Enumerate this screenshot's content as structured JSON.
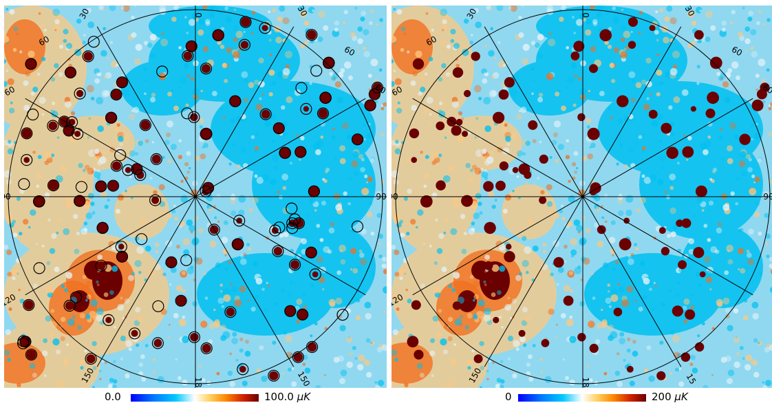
{
  "maps": [
    {
      "id": "left",
      "labels": {
        "top": "0",
        "top_right": "30",
        "top_left": "30",
        "upper_right": "60",
        "upper_left": "60",
        "mid_right_upper": "60",
        "mid_left_upper": "60",
        "right": "90",
        "left": "90",
        "lower_left": "120",
        "bottom_left": "150",
        "bottom": "18",
        "bottom_right": "150"
      },
      "colorbar": {
        "min_label": "0.0",
        "max_label": "100.0",
        "unit": "μK"
      }
    },
    {
      "id": "right",
      "labels": {
        "top": "0",
        "top_right": "30",
        "top_left": "30",
        "upper_right": "60",
        "upper_left": "60",
        "mid_right_upper": "60",
        "mid_left_upper": "60",
        "right": "90",
        "left": "90",
        "lower_left": "120",
        "bottom_left": "150",
        "bottom": "18",
        "bottom_right": "15"
      },
      "colorbar": {
        "min_label": "0",
        "max_label": "200",
        "unit": "μK"
      }
    }
  ],
  "colors": {
    "cold": "#00c0f0",
    "cool": "#8fd8f0",
    "warm": "#ffc880",
    "hot": "#f07020",
    "source": "#6a0000"
  }
}
